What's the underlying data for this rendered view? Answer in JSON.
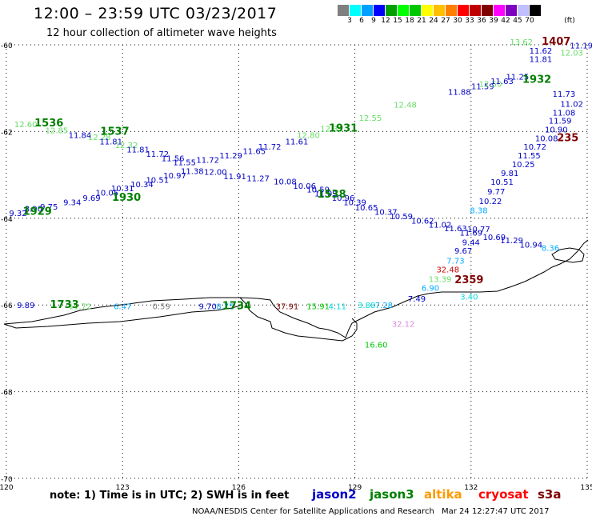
{
  "header": {
    "title": "12:00  –  23:59 UTC 03/23/2017",
    "subtitle": "12 hour collection of altimeter wave heights"
  },
  "scale": {
    "unit_label": "(ft)",
    "colors": [
      "#808080",
      "#00ffff",
      "#00a0ff",
      "#0000ff",
      "#00a000",
      "#00ff00",
      "#00c800",
      "#ffff00",
      "#ffc000",
      "#ff8000",
      "#ff0000",
      "#c00000",
      "#800000",
      "#ff00ff",
      "#8000c0",
      "#c0c0ff",
      "#000000"
    ],
    "labels": [
      "3",
      "6",
      "9",
      "12",
      "15",
      "18",
      "21",
      "24",
      "27",
      "30",
      "33",
      "36",
      "39",
      "42",
      "45",
      "70"
    ]
  },
  "axes": {
    "x_ticks": [
      "120",
      "123",
      "126",
      "129",
      "132",
      "135"
    ],
    "y_ticks": [
      "-60",
      "-62",
      "-64",
      "-66",
      "-68",
      "-70"
    ]
  },
  "footer": {
    "note": "note:  1) Time is in UTC;  2) SWH is in feet",
    "satellites": [
      {
        "name": "jason2",
        "color": "#0000c8"
      },
      {
        "name": "jason3",
        "color": "#008000"
      },
      {
        "name": "altika",
        "color": "#ff9900"
      },
      {
        "name": "cryosat",
        "color": "#ff0000"
      },
      {
        "name": "s3a",
        "color": "#800000"
      }
    ],
    "credit": "NOAA/NESDIS Center for Satellite Applications and Research",
    "timestamp": "Mar 24 12:27:47 UTC 2017"
  },
  "map_data": {
    "lon_range": [
      120,
      135
    ],
    "lat_range": [
      -70,
      -60
    ],
    "time_labels": [
      {
        "text": "1536",
        "lon": 121.1,
        "lat": -61.88,
        "color": "#008000"
      },
      {
        "text": "1537",
        "lon": 122.8,
        "lat": -62.08,
        "color": "#008000"
      },
      {
        "text": "1931",
        "lon": 128.7,
        "lat": -62.0,
        "color": "#008000"
      },
      {
        "text": "1930",
        "lon": 123.1,
        "lat": -63.6,
        "color": "#008000"
      },
      {
        "text": "1929",
        "lon": 120.8,
        "lat": -63.92,
        "color": "#008000"
      },
      {
        "text": "1538",
        "lon": 128.4,
        "lat": -63.52,
        "color": "#008000"
      },
      {
        "text": "1932",
        "lon": 133.7,
        "lat": -60.88,
        "color": "#008000"
      },
      {
        "text": "1407",
        "lon": 134.2,
        "lat": -60.0,
        "color": "#800000"
      },
      {
        "text": "2359",
        "lon": 131.95,
        "lat": -65.5,
        "color": "#800000"
      },
      {
        "text": "235",
        "lon": 134.5,
        "lat": -62.22,
        "color": "#800000"
      },
      {
        "text": "1733",
        "lon": 121.5,
        "lat": -66.07,
        "color": "#008000"
      },
      {
        "text": "1734",
        "lon": 125.95,
        "lat": -66.1,
        "color": "#008000"
      }
    ],
    "swh_labels": [
      {
        "t": "12.60",
        "lon": 120.5,
        "lat": -61.9,
        "c": "#66dd66"
      },
      {
        "t": "12.85",
        "lon": 121.3,
        "lat": -62.04,
        "c": "#66dd66"
      },
      {
        "t": "11.84",
        "lon": 121.9,
        "lat": -62.15,
        "c": "#0000c8"
      },
      {
        "t": "12.28",
        "lon": 122.4,
        "lat": -62.2,
        "c": "#66dd66"
      },
      {
        "t": "11.81",
        "lon": 122.7,
        "lat": -62.3,
        "c": "#0000c8"
      },
      {
        "t": "12.32",
        "lon": 123.1,
        "lat": -62.38,
        "c": "#66dd66"
      },
      {
        "t": "11.81",
        "lon": 123.4,
        "lat": -62.48,
        "c": "#0000c8"
      },
      {
        "t": "11.72",
        "lon": 123.9,
        "lat": -62.58,
        "c": "#0000c8"
      },
      {
        "t": "11.56",
        "lon": 124.3,
        "lat": -62.68,
        "c": "#0000c8"
      },
      {
        "t": "11.55",
        "lon": 124.6,
        "lat": -62.78,
        "c": "#0000c8"
      },
      {
        "t": "11.72",
        "lon": 125.2,
        "lat": -62.72,
        "c": "#0000c8"
      },
      {
        "t": "11.29",
        "lon": 125.8,
        "lat": -62.62,
        "c": "#0000c8"
      },
      {
        "t": "11.65",
        "lon": 126.4,
        "lat": -62.52,
        "c": "#0000c8"
      },
      {
        "t": "11.72",
        "lon": 126.8,
        "lat": -62.42,
        "c": "#0000c8"
      },
      {
        "t": "11.61",
        "lon": 127.5,
        "lat": -62.3,
        "c": "#0000c8"
      },
      {
        "t": "12.80",
        "lon": 127.8,
        "lat": -62.15,
        "c": "#66dd66"
      },
      {
        "t": "12.33",
        "lon": 128.4,
        "lat": -62.0,
        "c": "#66dd66"
      },
      {
        "t": "12.55",
        "lon": 129.4,
        "lat": -61.75,
        "c": "#66dd66"
      },
      {
        "t": "12.48",
        "lon": 130.3,
        "lat": -61.45,
        "c": "#66dd66"
      },
      {
        "t": "11.88",
        "lon": 131.7,
        "lat": -61.15,
        "c": "#0000c8"
      },
      {
        "t": "11.59",
        "lon": 132.3,
        "lat": -61.02,
        "c": "#0000c8"
      },
      {
        "t": "12.50",
        "lon": 132.5,
        "lat": -60.97,
        "c": "#66dd66"
      },
      {
        "t": "11.63",
        "lon": 132.8,
        "lat": -60.9,
        "c": "#0000c8"
      },
      {
        "t": "11.25",
        "lon": 133.2,
        "lat": -60.8,
        "c": "#0000c8"
      },
      {
        "t": "13.62",
        "lon": 133.3,
        "lat": -60.0,
        "c": "#66dd66"
      },
      {
        "t": "11.62",
        "lon": 133.8,
        "lat": -60.2,
        "c": "#0000c8"
      },
      {
        "t": "11.81",
        "lon": 133.8,
        "lat": -60.4,
        "c": "#0000c8"
      },
      {
        "t": "12.03",
        "lon": 134.6,
        "lat": -60.25,
        "c": "#66dd66"
      },
      {
        "t": "11.19",
        "lon": 134.85,
        "lat": -60.08,
        "c": "#0000c8"
      },
      {
        "t": "11.73",
        "lon": 134.4,
        "lat": -61.2,
        "c": "#0000c8"
      },
      {
        "t": "11.02",
        "lon": 134.6,
        "lat": -61.43,
        "c": "#0000c8"
      },
      {
        "t": "11.08",
        "lon": 134.4,
        "lat": -61.63,
        "c": "#0000c8"
      },
      {
        "t": "11.59",
        "lon": 134.3,
        "lat": -61.82,
        "c": "#0000c8"
      },
      {
        "t": "10.90",
        "lon": 134.2,
        "lat": -62.02,
        "c": "#0000c8"
      },
      {
        "t": "10.08",
        "lon": 133.95,
        "lat": -62.22,
        "c": "#0000c8"
      },
      {
        "t": "10.72",
        "lon": 133.65,
        "lat": -62.42,
        "c": "#0000c8"
      },
      {
        "t": "11.55",
        "lon": 133.5,
        "lat": -62.62,
        "c": "#0000c8"
      },
      {
        "t": "10.25",
        "lon": 133.35,
        "lat": -62.82,
        "c": "#0000c8"
      },
      {
        "t": "9.81",
        "lon": 133.0,
        "lat": -63.03,
        "c": "#0000c8"
      },
      {
        "t": "10.51",
        "lon": 132.8,
        "lat": -63.23,
        "c": "#0000c8"
      },
      {
        "t": "9.77",
        "lon": 132.65,
        "lat": -63.45,
        "c": "#0000c8"
      },
      {
        "t": "10.22",
        "lon": 132.5,
        "lat": -63.67,
        "c": "#0000c8"
      },
      {
        "t": "8.38",
        "lon": 132.2,
        "lat": -63.88,
        "c": "#00aaff"
      },
      {
        "t": "10.77",
        "lon": 132.2,
        "lat": -64.32,
        "c": "#0000c8"
      },
      {
        "t": "10.69",
        "lon": 132.6,
        "lat": -64.5,
        "c": "#0000c8"
      },
      {
        "t": "11.29",
        "lon": 133.05,
        "lat": -64.58,
        "c": "#0000c8"
      },
      {
        "t": "10.94",
        "lon": 133.55,
        "lat": -64.68,
        "c": "#0000c8"
      },
      {
        "t": "8.36",
        "lon": 134.05,
        "lat": -64.75,
        "c": "#00aaff"
      },
      {
        "t": "9.44",
        "lon": 132.0,
        "lat": -64.62,
        "c": "#0000c8"
      },
      {
        "t": "9.67",
        "lon": 131.8,
        "lat": -64.82,
        "c": "#0000c8"
      },
      {
        "t": "7.73",
        "lon": 131.6,
        "lat": -65.05,
        "c": "#00aaff"
      },
      {
        "t": "32.48",
        "lon": 131.4,
        "lat": -65.25,
        "c": "#cc0000"
      },
      {
        "t": "13.39",
        "lon": 131.2,
        "lat": -65.47,
        "c": "#66dd66"
      },
      {
        "t": "6.90",
        "lon": 130.95,
        "lat": -65.67,
        "c": "#00aaff"
      },
      {
        "t": "3.40",
        "lon": 131.95,
        "lat": -65.88,
        "c": "#00dddd"
      },
      {
        "t": "7.49",
        "lon": 130.6,
        "lat": -65.92,
        "c": "#0000c8"
      },
      {
        "t": "9.32",
        "lon": 120.3,
        "lat": -63.95,
        "c": "#0000c8"
      },
      {
        "t": "8.90",
        "lon": 120.7,
        "lat": -63.85,
        "c": "#0000c8"
      },
      {
        "t": "9.75",
        "lon": 121.1,
        "lat": -63.8,
        "c": "#0000c8"
      },
      {
        "t": "9.34",
        "lon": 121.7,
        "lat": -63.7,
        "c": "#0000c8"
      },
      {
        "t": "9.69",
        "lon": 122.2,
        "lat": -63.6,
        "c": "#0000c8"
      },
      {
        "t": "10.05",
        "lon": 122.6,
        "lat": -63.48,
        "c": "#0000c8"
      },
      {
        "t": "10.31",
        "lon": 123.0,
        "lat": -63.38,
        "c": "#0000c8"
      },
      {
        "t": "10.34",
        "lon": 123.5,
        "lat": -63.28,
        "c": "#0000c8"
      },
      {
        "t": "10.51",
        "lon": 123.9,
        "lat": -63.18,
        "c": "#0000c8"
      },
      {
        "t": "10.97",
        "lon": 124.35,
        "lat": -63.08,
        "c": "#0000c8"
      },
      {
        "t": "11.38",
        "lon": 124.8,
        "lat": -62.98,
        "c": "#0000c8"
      },
      {
        "t": "12.00",
        "lon": 125.4,
        "lat": -63.0,
        "c": "#0000c8"
      },
      {
        "t": "11.91",
        "lon": 125.9,
        "lat": -63.1,
        "c": "#0000c8"
      },
      {
        "t": "11.27",
        "lon": 126.5,
        "lat": -63.15,
        "c": "#0000c8"
      },
      {
        "t": "10.08",
        "lon": 127.2,
        "lat": -63.22,
        "c": "#0000c8"
      },
      {
        "t": "10.06",
        "lon": 127.7,
        "lat": -63.32,
        "c": "#0000c8"
      },
      {
        "t": "10.59",
        "lon": 128.05,
        "lat": -63.4,
        "c": "#0000c8"
      },
      {
        "t": "11.09",
        "lon": 128.25,
        "lat": -63.5,
        "c": "#0000c8"
      },
      {
        "t": "10.96",
        "lon": 128.7,
        "lat": -63.6,
        "c": "#0000c8"
      },
      {
        "t": "10.39",
        "lon": 129.0,
        "lat": -63.7,
        "c": "#0000c8"
      },
      {
        "t": "10.65",
        "lon": 129.3,
        "lat": -63.82,
        "c": "#0000c8"
      },
      {
        "t": "10.37",
        "lon": 129.8,
        "lat": -63.92,
        "c": "#0000c8"
      },
      {
        "t": "10.59",
        "lon": 130.2,
        "lat": -64.02,
        "c": "#0000c8"
      },
      {
        "t": "10.62",
        "lon": 130.75,
        "lat": -64.12,
        "c": "#0000c8"
      },
      {
        "t": "11.02",
        "lon": 131.2,
        "lat": -64.22,
        "c": "#0000c8"
      },
      {
        "t": "11.63",
        "lon": 131.6,
        "lat": -64.3,
        "c": "#0000c8"
      },
      {
        "t": "11.69",
        "lon": 132.0,
        "lat": -64.4,
        "c": "#0000c8"
      },
      {
        "t": "9.89",
        "lon": 120.5,
        "lat": -66.07,
        "c": "#0000c8"
      },
      {
        "t": "11.72",
        "lon": 121.9,
        "lat": -66.1,
        "c": "#66dd66"
      },
      {
        "t": "6.47",
        "lon": 123.0,
        "lat": -66.1,
        "c": "#00aaff"
      },
      {
        "t": "0.59",
        "lon": 124.0,
        "lat": -66.1,
        "c": "#808080"
      },
      {
        "t": "9.70",
        "lon": 125.2,
        "lat": -66.1,
        "c": "#0000c8"
      },
      {
        "t": "8.75",
        "lon": 125.65,
        "lat": -66.1,
        "c": "#00aaff"
      },
      {
        "t": "37.91",
        "lon": 127.25,
        "lat": -66.1,
        "c": "#800000"
      },
      {
        "t": "15.91",
        "lon": 128.05,
        "lat": -66.1,
        "c": "#00c800"
      },
      {
        "t": "4.11",
        "lon": 128.55,
        "lat": -66.1,
        "c": "#00dddd"
      },
      {
        "t": "3.88",
        "lon": 129.3,
        "lat": -66.07,
        "c": "#00dddd"
      },
      {
        "t": "7.28",
        "lon": 129.75,
        "lat": -66.07,
        "c": "#00aaff"
      },
      {
        "t": "32.12",
        "lon": 130.25,
        "lat": -66.5,
        "c": "#dd88dd"
      },
      {
        "t": "16.60",
        "lon": 129.55,
        "lat": -66.98,
        "c": "#00c800"
      }
    ]
  }
}
